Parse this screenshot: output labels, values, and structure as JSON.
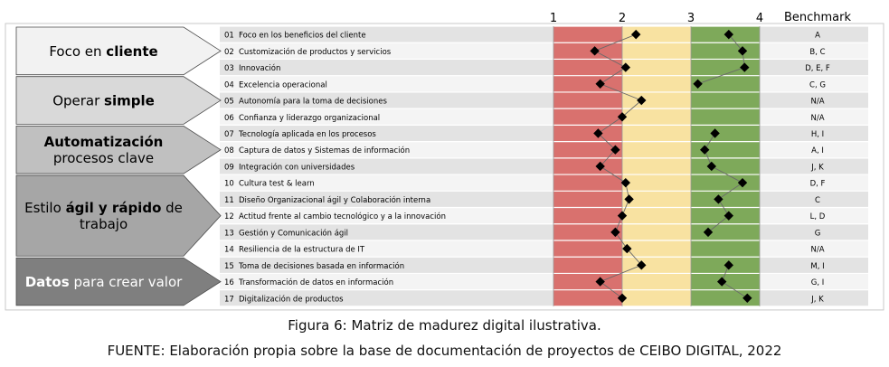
{
  "chart_data": {
    "type": "scatter",
    "scale_ticks": [
      "1",
      "2",
      "3",
      "4"
    ],
    "benchmark_header": "Benchmark",
    "xlim": [
      1,
      4
    ],
    "zones": [
      {
        "from": 1,
        "to": 2,
        "color": "#d9716e"
      },
      {
        "from": 2,
        "to": 3,
        "color": "#f8e2a1"
      },
      {
        "from": 3,
        "to": 4,
        "color": "#7ea95a"
      }
    ],
    "groups": [
      {
        "title_parts": [
          {
            "text": "Foco en ",
            "bold": false
          },
          {
            "text": "cliente",
            "bold": true
          }
        ],
        "bg": "#f2f2f2",
        "fg": "#000000",
        "rows": 3
      },
      {
        "title_parts": [
          {
            "text": "Operar ",
            "bold": false
          },
          {
            "text": "simple",
            "bold": true
          }
        ],
        "bg": "#d9d9d9",
        "fg": "#000000",
        "rows": 3
      },
      {
        "title_lines": [
          [
            {
              "text": "Automatización",
              "bold": true
            }
          ],
          [
            {
              "text": "procesos clave",
              "bold": false
            }
          ]
        ],
        "bg": "#c0c0c0",
        "fg": "#000000",
        "rows": 3
      },
      {
        "title_lines": [
          [
            {
              "text": "Estilo ",
              "bold": false
            },
            {
              "text": "ágil y rápido",
              "bold": true
            },
            {
              "text": " de",
              "bold": false
            }
          ],
          [
            {
              "text": "trabajo",
              "bold": false
            }
          ]
        ],
        "bg": "#a6a6a6",
        "fg": "#000000",
        "rows": 5
      },
      {
        "title_parts": [
          {
            "text": "Datos",
            "bold": true
          },
          {
            "text": " para crear valor",
            "bold": false
          }
        ],
        "bg": "#7f7f7f",
        "fg": "#ffffff",
        "rows": 3
      }
    ],
    "rows": [
      {
        "num": "01",
        "label": "Foco en los beneficios del cliente",
        "value": 2.2,
        "benchmark": "A"
      },
      {
        "num": "02",
        "label": "Customización de productos y servicios",
        "value": 1.6,
        "benchmark": "B, C"
      },
      {
        "num": "03",
        "label": "Innovación",
        "value": 2.05,
        "benchmark": "D, E, F"
      },
      {
        "num": "04",
        "label": "Excelencia operacional",
        "value": 1.68,
        "benchmark": "C, G"
      },
      {
        "num": "05",
        "label": "Autonomía para la toma de decisiones",
        "value": 2.28,
        "benchmark": "N/A"
      },
      {
        "num": "06",
        "label": "Confianza y liderazgo organizacional",
        "value": 2.0,
        "benchmark": "N/A"
      },
      {
        "num": "07",
        "label": "Tecnología aplicada en los procesos",
        "value": 1.65,
        "benchmark": "H, I"
      },
      {
        "num": "08",
        "label": "Captura de datos y Sistemas de información",
        "value": 1.9,
        "benchmark": "A, I"
      },
      {
        "num": "09",
        "label": "Integración con universidades",
        "value": 1.68,
        "benchmark": "J, K"
      },
      {
        "num": "10",
        "label": "Cultura test & learn",
        "value": 2.05,
        "benchmark": "D, F"
      },
      {
        "num": "11",
        "label": "Diseño Organizacional ágil y Colaboración interna",
        "value": 2.1,
        "benchmark": "C"
      },
      {
        "num": "12",
        "label": "Actitud frente al cambio tecnológico y a la innovación",
        "value": 2.0,
        "benchmark": "L, D"
      },
      {
        "num": "13",
        "label": "Gestión y Comunicación ágil",
        "value": 1.9,
        "benchmark": "G"
      },
      {
        "num": "14",
        "label": "Resiliencia de la estructura de IT",
        "value": 2.07,
        "benchmark": "N/A"
      },
      {
        "num": "15",
        "label": "Toma de decisiones basada en información",
        "value": 2.28,
        "benchmark": "M, I"
      },
      {
        "num": "16",
        "label": "Transformación de datos en información",
        "value": 1.68,
        "benchmark": "G, I"
      },
      {
        "num": "17",
        "label": "Digitalización de productos",
        "value": 2.0,
        "benchmark": "J, K"
      }
    ],
    "series2": [
      3.55,
      3.75,
      3.78,
      3.1,
      null,
      null,
      3.35,
      3.2,
      3.3,
      3.75,
      3.4,
      3.55,
      3.25,
      null,
      3.55,
      3.45,
      3.82
    ]
  },
  "caption": {
    "line1": "Figura 6: Matriz de madurez digital ilustrativa.",
    "line2": "FUENTE: Elaboración propia sobre la base de documentación de proyectos de CEIBO DIGITAL, 2022"
  }
}
